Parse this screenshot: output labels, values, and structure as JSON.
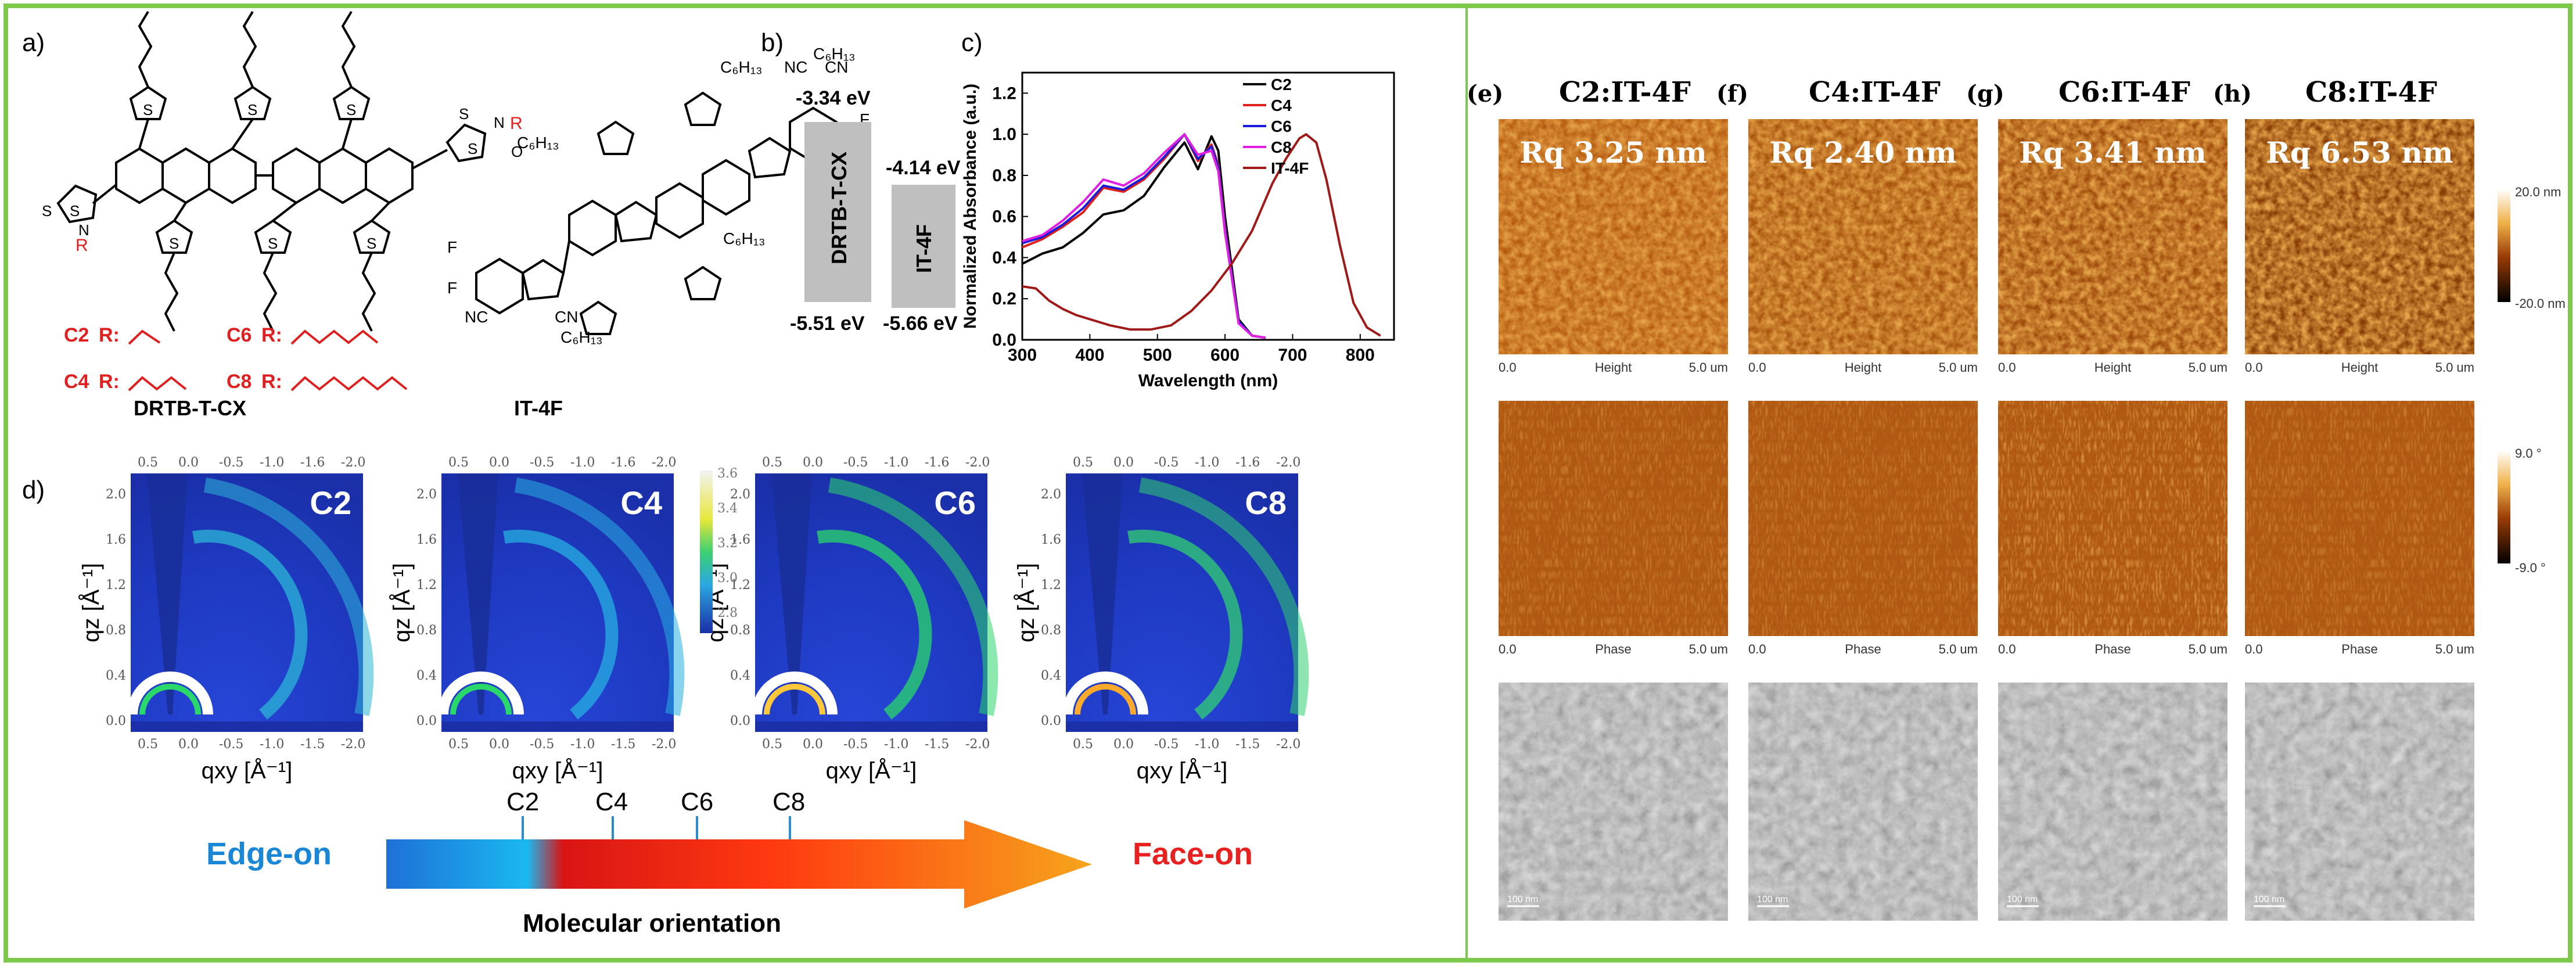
{
  "panels": {
    "a": {
      "letter": "a)",
      "molecule1_name": "DRTB-T-CX",
      "molecule2_name": "IT-4F",
      "side_chains": [
        {
          "label": "C2",
          "prefix": "R:"
        },
        {
          "label": "C6",
          "prefix": "R:"
        },
        {
          "label": "C4",
          "prefix": "R:"
        },
        {
          "label": "C8",
          "prefix": "R:"
        }
      ],
      "r_label": "R",
      "atoms": {
        "s": "S",
        "n": "N",
        "o": "O",
        "f": "F",
        "nc": "NC",
        "cn": "CN",
        "c6h13": "C₆H₁₃"
      }
    },
    "b": {
      "letter": "b)",
      "donor_label": "DRTB-T-CX",
      "acceptor_label": "IT-4F",
      "donor_lumo": "-3.34 eV",
      "donor_homo": "-5.51 eV",
      "acceptor_lumo": "-4.14 eV",
      "acceptor_homo": "-5.66 eV"
    },
    "c": {
      "letter": "c)"
    },
    "d": {
      "letter": "d)",
      "samples": [
        "C2",
        "C4",
        "C6",
        "C8"
      ],
      "xlabel": "qxy [Å⁻¹]",
      "ylabel": "qz [Å⁻¹]",
      "x_ticks": [
        "0.5",
        "0.0",
        "-0.5",
        "-1.0",
        "-1.6",
        "-2.0"
      ],
      "bottom_x_ticks": [
        "0.5",
        "0.0",
        "-0.5",
        "-1.0",
        "-1.5",
        "-2.0"
      ],
      "y_ticks": [
        "0.0",
        "0.4",
        "0.8",
        "1.2",
        "1.6",
        "2.0"
      ],
      "colorbar_ticks": [
        "3.6",
        "3.4",
        "3.2",
        "3.0",
        "2.8"
      ],
      "arrow": {
        "left_label": "Edge-on",
        "right_label": "Face-on",
        "caption": "Molecular orientation",
        "markers": [
          "C2",
          "C4",
          "C6",
          "C8"
        ]
      }
    },
    "afm": {
      "columns": [
        {
          "letter": "(e)",
          "title": "C2:IT-4F",
          "rq": "Rq  3.25 nm",
          "tem_scale": "100 nm"
        },
        {
          "letter": "(f)",
          "title": "C4:IT-4F",
          "rq": "Rq  2.40 nm",
          "tem_scale": "100 nm"
        },
        {
          "letter": "(g)",
          "title": "C6:IT-4F",
          "rq": "Rq  3.41 nm",
          "tem_scale": "100 nm"
        },
        {
          "letter": "(h)",
          "title": "C8:IT-4F",
          "rq": "Rq  6.53 nm",
          "tem_scale": "100 nm"
        }
      ],
      "axis_start": "0.0",
      "axis_end": "5.0 um",
      "height_label": "Height",
      "phase_label": "Phase",
      "height_scale": {
        "top": "20.0 nm",
        "bottom": "-20.0 nm"
      },
      "phase_scale": {
        "top": "9.0 °",
        "bottom": "-9.0 °"
      }
    }
  },
  "chart_data": {
    "type": "line",
    "title": "",
    "xlabel": "Wavelength (nm)",
    "ylabel": "Normalized Absorbance (a.u.)",
    "xlim": [
      300,
      850
    ],
    "ylim": [
      0,
      1.3
    ],
    "x_ticks": [
      300,
      400,
      500,
      600,
      700,
      800
    ],
    "y_ticks": [
      0.0,
      0.2,
      0.4,
      0.6,
      0.8,
      1.0,
      1.2
    ],
    "legend_position": "top-right",
    "series": [
      {
        "name": "C2",
        "color": "#000000",
        "x": [
          300,
          330,
          360,
          390,
          420,
          450,
          480,
          510,
          540,
          560,
          580,
          590,
          600,
          620,
          640,
          660
        ],
        "y": [
          0.37,
          0.42,
          0.45,
          0.52,
          0.61,
          0.63,
          0.7,
          0.84,
          0.96,
          0.83,
          0.99,
          0.92,
          0.6,
          0.1,
          0.02,
          0.01
        ]
      },
      {
        "name": "C4",
        "color": "#e0201c",
        "x": [
          300,
          330,
          360,
          390,
          420,
          450,
          480,
          510,
          540,
          560,
          580,
          590,
          600,
          620,
          640,
          660
        ],
        "y": [
          0.45,
          0.49,
          0.55,
          0.62,
          0.74,
          0.72,
          0.78,
          0.88,
          1.0,
          0.87,
          0.95,
          0.85,
          0.55,
          0.09,
          0.02,
          0.01
        ]
      },
      {
        "name": "C6",
        "color": "#1c1cd8",
        "x": [
          300,
          330,
          360,
          390,
          420,
          450,
          480,
          510,
          540,
          560,
          580,
          590,
          600,
          620,
          640,
          660
        ],
        "y": [
          0.47,
          0.5,
          0.56,
          0.64,
          0.75,
          0.73,
          0.79,
          0.89,
          1.0,
          0.88,
          0.94,
          0.84,
          0.54,
          0.09,
          0.02,
          0.01
        ]
      },
      {
        "name": "C8",
        "color": "#e020e0",
        "x": [
          300,
          330,
          360,
          390,
          420,
          450,
          480,
          510,
          540,
          560,
          580,
          590,
          600,
          620,
          640,
          660
        ],
        "y": [
          0.48,
          0.51,
          0.58,
          0.67,
          0.78,
          0.75,
          0.81,
          0.91,
          1.0,
          0.9,
          0.92,
          0.82,
          0.52,
          0.08,
          0.02,
          0.01
        ]
      },
      {
        "name": "IT-4F",
        "color": "#a01818",
        "x": [
          300,
          320,
          340,
          360,
          380,
          400,
          430,
          460,
          490,
          520,
          550,
          580,
          610,
          640,
          670,
          690,
          710,
          720,
          735,
          750,
          770,
          790,
          810,
          830
        ],
        "y": [
          0.26,
          0.25,
          0.19,
          0.15,
          0.12,
          0.1,
          0.07,
          0.05,
          0.05,
          0.07,
          0.14,
          0.24,
          0.37,
          0.53,
          0.76,
          0.88,
          0.98,
          1.0,
          0.96,
          0.78,
          0.46,
          0.18,
          0.06,
          0.02
        ]
      }
    ]
  }
}
